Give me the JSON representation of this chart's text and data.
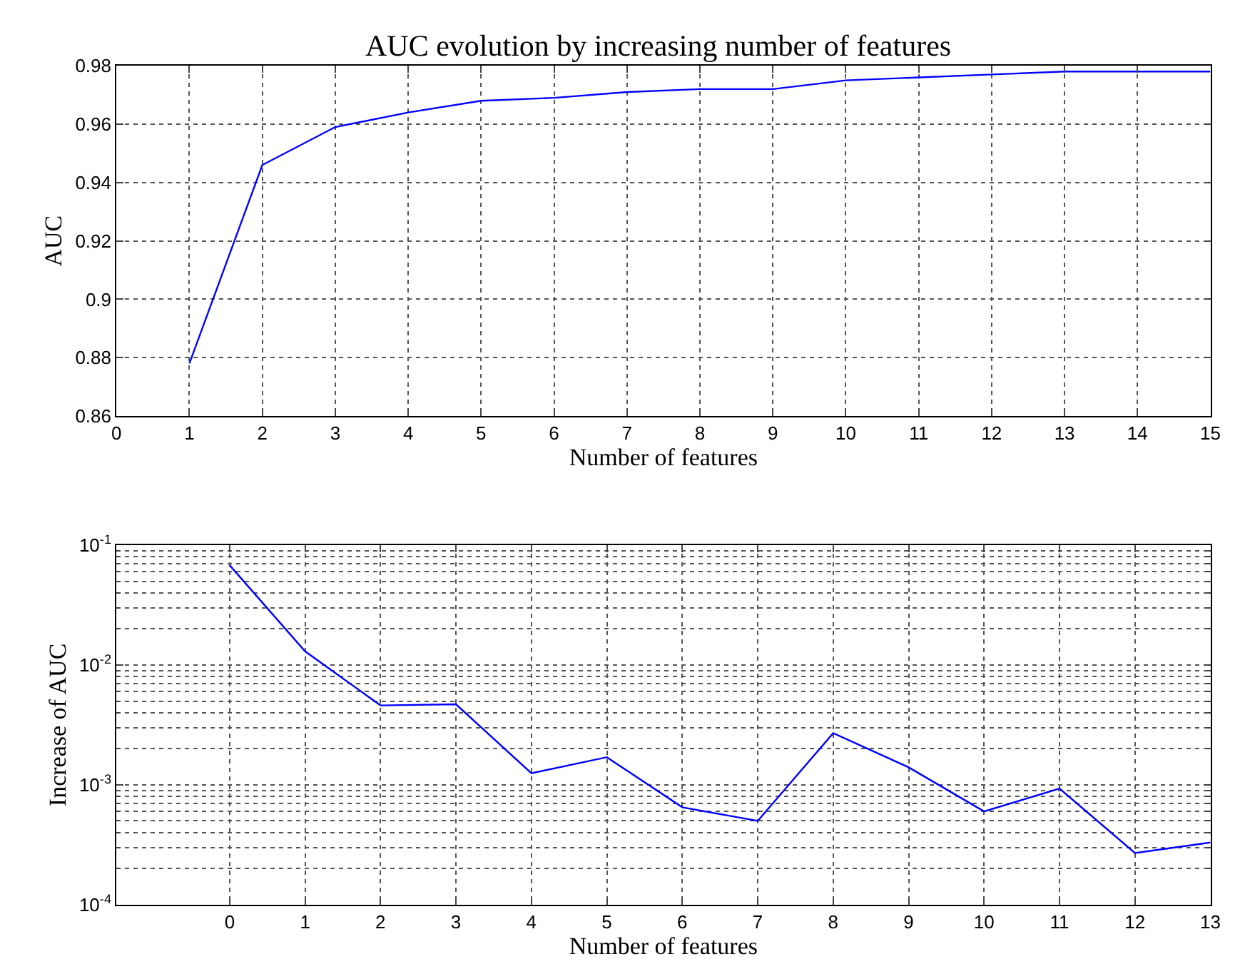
{
  "chart_data": [
    {
      "type": "line",
      "title": "AUC evolution by increasing number of features",
      "xlabel": "Number of features",
      "ylabel": "AUC",
      "x": [
        1,
        2,
        3,
        4,
        5,
        6,
        7,
        8,
        9,
        10,
        11,
        12,
        13,
        14,
        15
      ],
      "series": [
        {
          "color": "#0000ff",
          "values": [
            0.878,
            0.946,
            0.959,
            0.964,
            0.968,
            0.969,
            0.971,
            0.972,
            0.972,
            0.975,
            0.976,
            0.977,
            0.978,
            0.978,
            0.978
          ]
        }
      ],
      "xlim": [
        0,
        15
      ],
      "xticks": [
        0,
        1,
        2,
        3,
        4,
        5,
        6,
        7,
        8,
        9,
        10,
        11,
        12,
        13,
        14,
        15
      ],
      "ylim": [
        0.86,
        0.98
      ],
      "yticks": [
        0.86,
        0.88,
        0.9,
        0.92,
        0.94,
        0.96,
        0.98
      ],
      "grid": true,
      "marker": "none",
      "line_style": "solid"
    },
    {
      "type": "line",
      "xlabel": "Number of features",
      "ylabel": "Increase of AUC",
      "x": [
        0,
        1,
        2,
        3,
        4,
        5,
        6,
        7,
        8,
        9,
        10,
        11,
        12,
        13
      ],
      "series": [
        {
          "color": "#0000ff",
          "values": [
            0.068,
            0.013,
            0.0046,
            0.0047,
            0.00125,
            0.0017,
            0.00065,
            0.0005,
            0.0027,
            0.0014,
            0.0006,
            0.00093,
            0.00027,
            0.00033
          ]
        }
      ],
      "xlim": [
        -1.5,
        13
      ],
      "xticks": [
        0,
        1,
        2,
        3,
        4,
        5,
        6,
        7,
        8,
        9,
        10,
        11,
        12,
        13
      ],
      "ylim": [
        0.0001,
        0.1
      ],
      "yticks": [
        {
          "value": 0.0001,
          "label": "10$^{-4}$"
        },
        {
          "value": 0.001,
          "label": "10$^{-3}$"
        },
        {
          "value": 0.01,
          "label": "10$^{-2}$"
        },
        {
          "value": 0.1,
          "label": "10$^{-1}$"
        }
      ],
      "log": "y",
      "grid": true,
      "marker": "none",
      "line_style": "solid"
    }
  ]
}
